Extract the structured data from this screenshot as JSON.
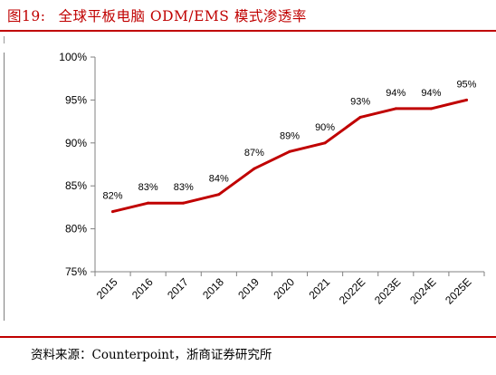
{
  "header": {
    "figure_label": "图19:",
    "title": "全球平板电脑 ODM/EMS 模式渗透率"
  },
  "footer": {
    "source": "资料来源：Counterpoint，浙商证券研究所"
  },
  "colors": {
    "accent": "#c00000",
    "line": "#c00000",
    "axis": "#808080"
  },
  "chart_data": {
    "type": "line",
    "categories": [
      "2015",
      "2016",
      "2017",
      "2018",
      "2019",
      "2020",
      "2021",
      "2022E",
      "2023E",
      "2024E",
      "2025E"
    ],
    "series": [
      {
        "values": [
          82,
          83,
          83,
          84,
          87,
          89,
          90,
          93,
          94,
          94,
          95
        ]
      }
    ],
    "data_labels": [
      "82%",
      "83%",
      "83%",
      "84%",
      "87%",
      "89%",
      "90%",
      "93%",
      "94%",
      "94%",
      "95%"
    ],
    "y_ticks": [
      75,
      80,
      85,
      90,
      95,
      100
    ],
    "y_tick_labels": [
      "75%",
      "80%",
      "85%",
      "90%",
      "95%",
      "100%"
    ],
    "ylim": [
      75,
      100
    ],
    "xlabel": "",
    "ylabel": "",
    "grid": false,
    "legend": "none"
  }
}
